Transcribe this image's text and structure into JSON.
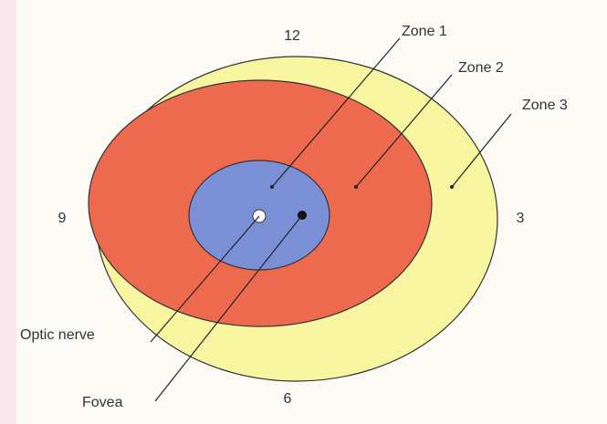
{
  "clock": {
    "top": "12",
    "left": "9",
    "right": "3",
    "bottom": "6"
  },
  "zones": [
    {
      "label": "Zone 1"
    },
    {
      "label": "Zone 2"
    },
    {
      "label": "Zone 3"
    }
  ],
  "landmarks": {
    "optic_nerve": "Optic nerve",
    "fovea": "Fovea"
  }
}
